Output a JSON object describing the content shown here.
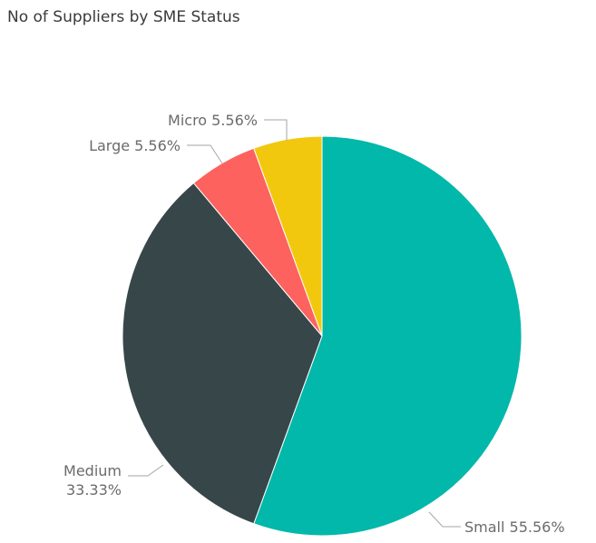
{
  "chart_data": {
    "type": "pie",
    "title": "No of Suppliers by SME Status",
    "slices": [
      {
        "category": "Small",
        "value": 55.56,
        "label": "Small 55.56%",
        "color": "#01B8AA"
      },
      {
        "category": "Medium",
        "value": 33.33,
        "label_lines": [
          "Medium",
          "33.33%"
        ],
        "color": "#374649"
      },
      {
        "category": "Large",
        "value": 5.56,
        "label": "Large 5.56%",
        "color": "#FD625E"
      },
      {
        "category": "Micro",
        "value": 5.56,
        "label": "Micro 5.56%",
        "color": "#F2C80F"
      }
    ],
    "start_angle": "12 o'clock",
    "direction": "clockwise",
    "legend": "none (data labels with leader lines)"
  }
}
